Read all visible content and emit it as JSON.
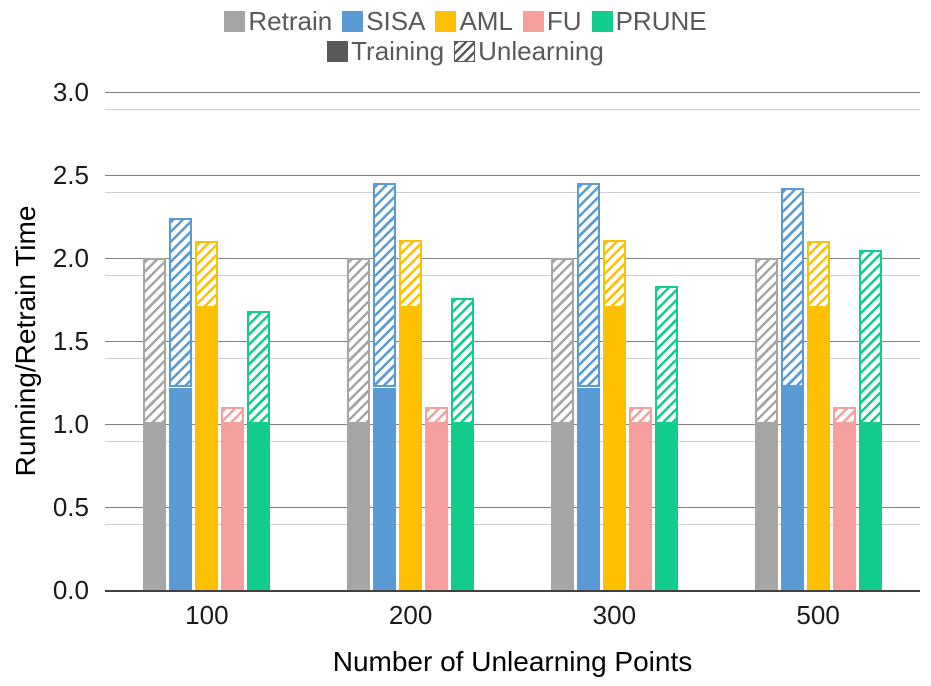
{
  "chart_data": {
    "type": "bar",
    "title": "",
    "xlabel": "Number of Unlearning Points",
    "ylabel": "Running/Retrain Time",
    "categories": [
      "100",
      "200",
      "300",
      "500"
    ],
    "ylim": [
      0.0,
      3.0
    ],
    "yticks": [
      "3.0",
      "2.5",
      "2.0",
      "1.5",
      "1.0",
      "0.5",
      "0.0"
    ],
    "gridlines": {
      "major": [
        3.0,
        2.5,
        2.0,
        1.5,
        1.0,
        0.5
      ],
      "minor": [
        2.9,
        2.4,
        1.9,
        1.4,
        0.9,
        0.4
      ]
    },
    "grid": "horizontal",
    "legend_position": "top",
    "stack_styles": [
      {
        "name": "Training",
        "style": "solid",
        "color": "#595959"
      },
      {
        "name": "Unlearning",
        "style": "hatched",
        "color": "#595959"
      }
    ],
    "series": [
      {
        "name": "Retrain",
        "color": "#A6A6A6",
        "training": [
          1.0,
          1.0,
          1.0,
          1.0
        ],
        "total": [
          2.0,
          2.0,
          2.0,
          2.0
        ]
      },
      {
        "name": "SISA",
        "color": "#5B9BD5",
        "training": [
          1.22,
          1.22,
          1.22,
          1.22
        ],
        "total": [
          2.24,
          2.45,
          2.45,
          2.42
        ]
      },
      {
        "name": "AML",
        "color": "#FFC000",
        "training": [
          1.7,
          1.7,
          1.7,
          1.7
        ],
        "total": [
          2.1,
          2.11,
          2.11,
          2.1
        ]
      },
      {
        "name": "FU",
        "color": "#F5A09D",
        "training": [
          1.0,
          1.0,
          1.0,
          1.0
        ],
        "total": [
          1.1,
          1.1,
          1.1,
          1.1
        ]
      },
      {
        "name": "PRUNE",
        "color": "#12CD8C",
        "training": [
          1.0,
          1.0,
          1.0,
          1.0
        ],
        "total": [
          1.68,
          1.76,
          1.83,
          2.05
        ]
      }
    ]
  }
}
